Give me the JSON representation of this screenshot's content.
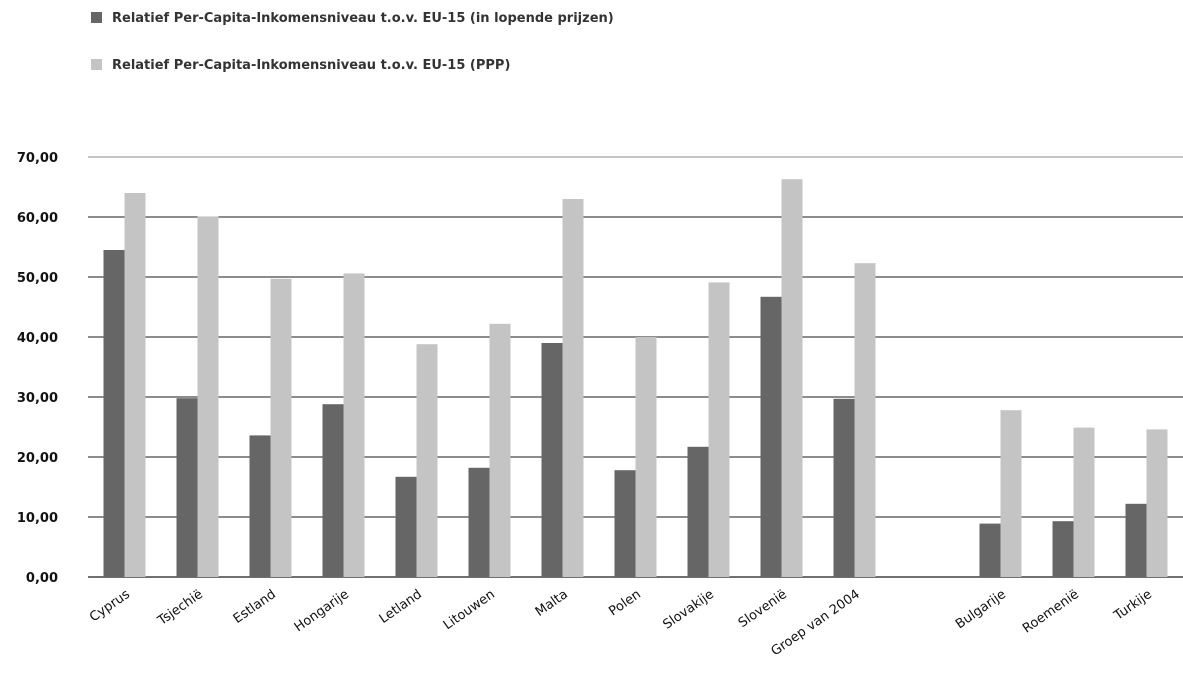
{
  "chart_data": {
    "type": "bar",
    "title": "",
    "xlabel": "",
    "ylabel": "",
    "ylim": [
      0,
      70
    ],
    "yticks": [
      "0,00",
      "10,00",
      "20,00",
      "30,00",
      "40,00",
      "50,00",
      "60,00",
      "70,00"
    ],
    "ytick_values": [
      0,
      10,
      20,
      30,
      40,
      50,
      60,
      70
    ],
    "grid": true,
    "legend": "top-left",
    "categories": [
      "Cyprus",
      "Tsjechië",
      "Estland",
      "Hongarije",
      "Letland",
      "Litouwen",
      "Malta",
      "Polen",
      "Slovakije",
      "Slovenië",
      "Groep van 2004",
      "",
      "Bulgarije",
      "Roemenië",
      "Turkije"
    ],
    "series": [
      {
        "name": "Relatief Per-Capita-Inkomensniveau t.o.v. EU-15 (in lopende prijzen)",
        "color": "#666666",
        "values": [
          54.5,
          29.8,
          23.6,
          28.8,
          16.7,
          18.2,
          39.0,
          17.8,
          21.7,
          46.7,
          29.7,
          null,
          8.9,
          9.3,
          12.2
        ]
      },
      {
        "name": "Relatief Per-Capita-Inkomensniveau t.o.v. EU-15 (PPP)",
        "color": "#c4c4c4",
        "values": [
          64.0,
          60.1,
          49.7,
          50.6,
          38.8,
          42.2,
          63.0,
          40.0,
          49.1,
          66.3,
          52.3,
          null,
          27.8,
          24.9,
          24.6
        ]
      }
    ]
  }
}
